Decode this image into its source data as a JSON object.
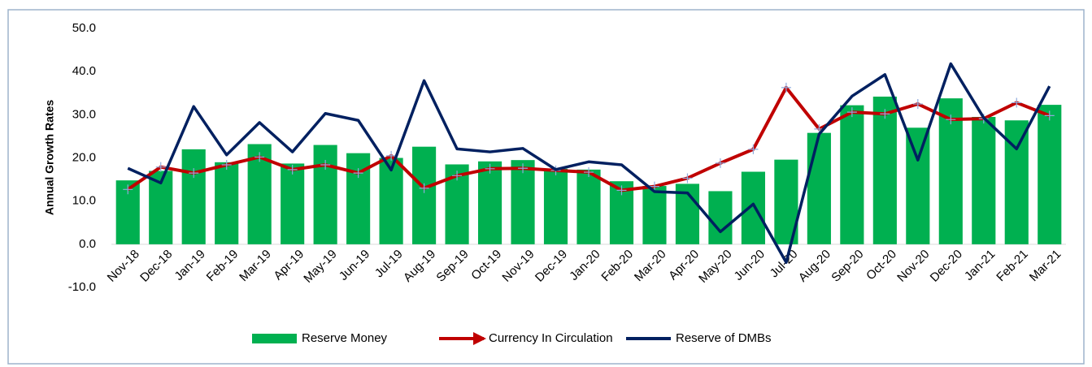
{
  "chart_data": {
    "type": "bar-line",
    "y_label": "Annual Growth Rates",
    "categories": [
      "Nov-18",
      "Dec-18",
      "Jan-19",
      "Feb-19",
      "Mar-19",
      "Apr-19",
      "May-19",
      "Jun-19",
      "Jul-19",
      "Aug-19",
      "Sep-19",
      "Oct-19",
      "Nov-19",
      "Dec-19",
      "Jan-20",
      "Feb-20",
      "Mar-20",
      "Apr-20",
      "May-20",
      "Jun-20",
      "Jul-20",
      "Aug-20",
      "Sep-20",
      "Oct-20",
      "Nov-20",
      "Dec-20",
      "Jan-21",
      "Feb-21",
      "Mar-21"
    ],
    "series": [
      {
        "name": "Reserve Money",
        "type": "bar",
        "color": "#00b050",
        "values": [
          14.8,
          17.0,
          22.0,
          19.0,
          23.2,
          18.7,
          23.0,
          21.1,
          20.0,
          22.6,
          18.5,
          19.2,
          19.5,
          17.5,
          17.3,
          14.6,
          13.5,
          14.0,
          12.3,
          16.8,
          19.6,
          25.8,
          32.2,
          34.2,
          27.0,
          33.8,
          29.5,
          28.7,
          32.3
        ]
      },
      {
        "name": "Currency In Circulation",
        "type": "line",
        "color": "#c00000",
        "values": [
          12.7,
          17.9,
          16.5,
          18.4,
          20.2,
          17.3,
          18.4,
          16.5,
          20.5,
          13.0,
          15.9,
          17.5,
          17.6,
          17.1,
          16.7,
          12.5,
          13.4,
          15.3,
          18.8,
          22.0,
          36.3,
          26.7,
          30.6,
          30.2,
          32.5,
          28.9,
          29.1,
          32.8,
          29.8
        ]
      },
      {
        "name": "Reserve of DMBs",
        "type": "line",
        "color": "#002060",
        "values": [
          17.6,
          14.2,
          31.9,
          20.7,
          28.2,
          21.4,
          30.3,
          28.7,
          17.2,
          37.9,
          22.1,
          21.4,
          22.2,
          17.3,
          19.1,
          18.4,
          12.2,
          11.9,
          2.9,
          9.3,
          -4.2,
          25.5,
          34.3,
          39.3,
          19.5,
          41.8,
          29.3,
          22.1,
          36.6
        ]
      }
    ],
    "ylim": [
      -10,
      50
    ],
    "yticks": [
      {
        "value": -10,
        "label": "-10.0"
      },
      {
        "value": 0,
        "label": "0.0"
      },
      {
        "value": 10,
        "label": "10.0"
      },
      {
        "value": 20,
        "label": "20.0"
      },
      {
        "value": 30,
        "label": "30.0"
      },
      {
        "value": 40,
        "label": "40.0"
      },
      {
        "value": 50,
        "label": "50.0"
      }
    ],
    "legend": "bottom"
  }
}
